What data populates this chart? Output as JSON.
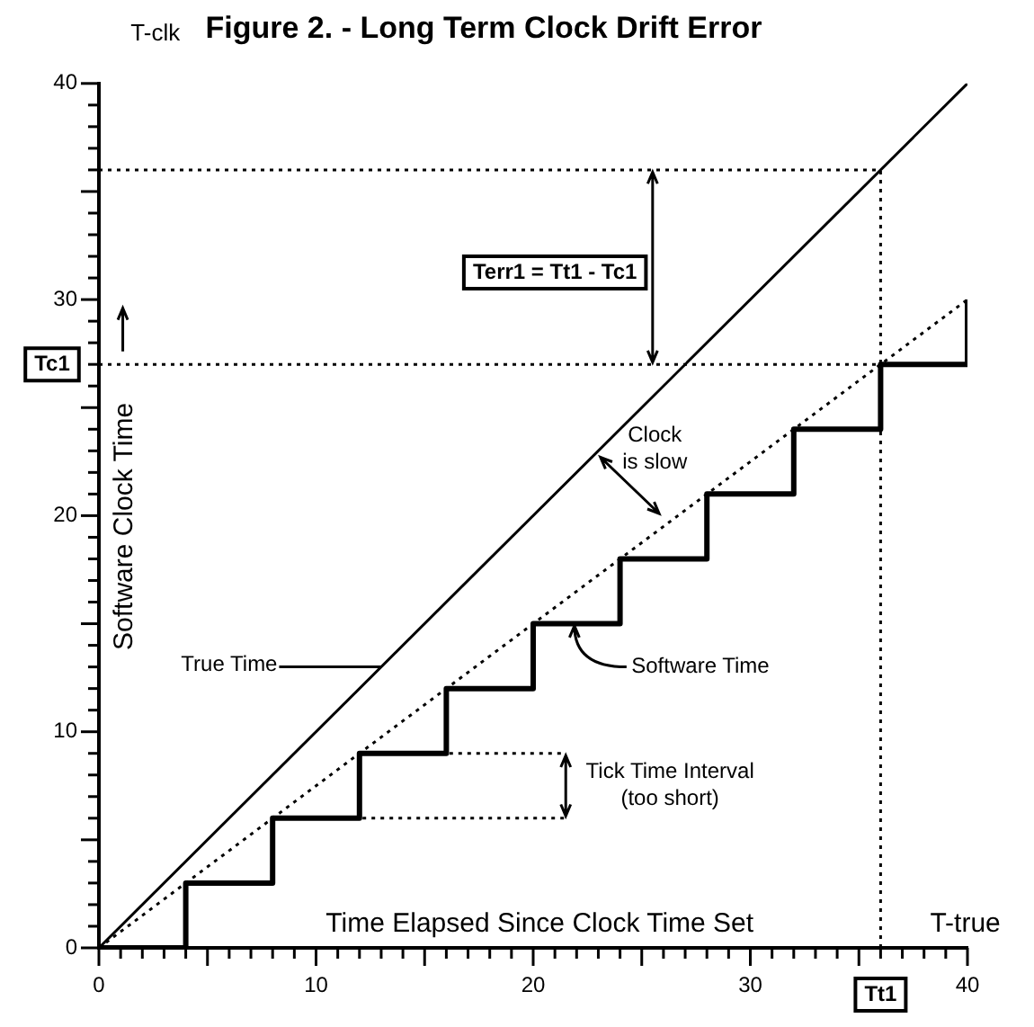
{
  "chart_data": {
    "type": "line",
    "title": "Figure 2. - Long Term Clock Drift Error",
    "xlabel": "Time Elapsed Since Clock Time Set",
    "ylabel": "Software Clock Time",
    "xlim": [
      0,
      40
    ],
    "ylim": [
      0,
      40
    ],
    "xticks": [
      0,
      {
        "value": 1,
        "label": null
      },
      {
        "value": 2,
        "label": null
      },
      {
        "value": 3,
        "label": null
      },
      {
        "value": 4,
        "label": null
      },
      {
        "value": 5,
        "label": null
      },
      {
        "value": 6,
        "label": null
      },
      {
        "value": 7,
        "label": null
      },
      {
        "value": 8,
        "label": null
      },
      {
        "value": 9,
        "label": null
      },
      10,
      {
        "value": 11,
        "label": null
      },
      {
        "value": 12,
        "label": null
      },
      {
        "value": 13,
        "label": null
      },
      {
        "value": 14,
        "label": null
      },
      {
        "value": 15,
        "label": null
      },
      {
        "value": 16,
        "label": null
      },
      {
        "value": 17,
        "label": null
      },
      {
        "value": 18,
        "label": null
      },
      {
        "value": 19,
        "label": null
      },
      20,
      {
        "value": 21,
        "label": null
      },
      {
        "value": 22,
        "label": null
      },
      {
        "value": 23,
        "label": null
      },
      {
        "value": 24,
        "label": null
      },
      {
        "value": 25,
        "label": null
      },
      {
        "value": 26,
        "label": null
      },
      {
        "value": 27,
        "label": null
      },
      {
        "value": 28,
        "label": null
      },
      {
        "value": 29,
        "label": null
      },
      30,
      {
        "value": 31,
        "label": null
      },
      {
        "value": 32,
        "label": null
      },
      {
        "value": 33,
        "label": null
      },
      {
        "value": 34,
        "label": null
      },
      {
        "value": 35,
        "label": null
      },
      {
        "value": 36,
        "label": null
      },
      {
        "value": 37,
        "label": null
      },
      {
        "value": 38,
        "label": null
      },
      {
        "value": 39,
        "label": null
      },
      40
    ],
    "yticks": [
      0,
      {
        "value": 1,
        "label": null
      },
      {
        "value": 2,
        "label": null
      },
      {
        "value": 3,
        "label": null
      },
      {
        "value": 4,
        "label": null
      },
      {
        "value": 5,
        "label": null
      },
      {
        "value": 6,
        "label": null
      },
      {
        "value": 7,
        "label": null
      },
      {
        "value": 8,
        "label": null
      },
      {
        "value": 9,
        "label": null
      },
      10,
      {
        "value": 11,
        "label": null
      },
      {
        "value": 12,
        "label": null
      },
      {
        "value": 13,
        "label": null
      },
      {
        "value": 14,
        "label": null
      },
      {
        "value": 15,
        "label": null
      },
      {
        "value": 16,
        "label": null
      },
      {
        "value": 17,
        "label": null
      },
      {
        "value": 18,
        "label": null
      },
      {
        "value": 19,
        "label": null
      },
      20,
      {
        "value": 21,
        "label": null
      },
      {
        "value": 22,
        "label": null
      },
      {
        "value": 23,
        "label": null
      },
      {
        "value": 24,
        "label": null
      },
      {
        "value": 25,
        "label": null
      },
      {
        "value": 26,
        "label": null
      },
      {
        "value": 27,
        "label": null
      },
      {
        "value": 28,
        "label": null
      },
      {
        "value": 29,
        "label": null
      },
      30,
      {
        "value": 31,
        "label": null
      },
      {
        "value": 32,
        "label": null
      },
      {
        "value": 33,
        "label": null
      },
      {
        "value": 34,
        "label": null
      },
      {
        "value": 35,
        "label": null
      },
      {
        "value": 36,
        "label": null
      },
      {
        "value": 37,
        "label": null
      },
      {
        "value": 38,
        "label": null
      },
      {
        "value": 39,
        "label": null
      },
      40
    ],
    "grid": false,
    "legend": false,
    "marker": "none",
    "series": [
      {
        "type": "line",
        "color": "#000000",
        "line_style": "solid",
        "x": [
          0,
          40
        ],
        "values": [
          0,
          40
        ]
      },
      {
        "type": "line",
        "color": "#000000",
        "line_style": "dotted",
        "x": [
          0,
          40
        ],
        "values": [
          0,
          30
        ]
      },
      {
        "type": "step",
        "color": "#000000",
        "line_style": "solid",
        "x": [
          0,
          4,
          8,
          12,
          16,
          20,
          24,
          28,
          32,
          36,
          40
        ],
        "values": [
          0,
          3,
          6,
          9,
          12,
          15,
          18,
          21,
          24,
          27,
          30
        ]
      },
      {
        "type": "line",
        "color": "#000000",
        "line_style": "dotted",
        "x": [
          8,
          21.5
        ],
        "values": [
          6,
          6
        ]
      },
      {
        "type": "line",
        "color": "#000000",
        "line_style": "dotted",
        "x": [
          12,
          21.5
        ],
        "values": [
          9,
          9
        ]
      }
    ],
    "ref_lines": [
      {
        "axis": "x",
        "value": 36,
        "label": "Tt1",
        "line_style": "dotted"
      },
      {
        "axis": "y",
        "value": 27,
        "label": "Tc1",
        "line_style": "dotted"
      },
      {
        "axis": "y",
        "value": 36,
        "label": null,
        "line_style": "dotted"
      }
    ],
    "annotations": [
      "T-clk",
      "T-true",
      "Terr1 = Tt1 - Tc1",
      "Clock\nis slow",
      "True Time",
      "Software Time",
      "Tick Time Interval\n(too short)"
    ]
  }
}
